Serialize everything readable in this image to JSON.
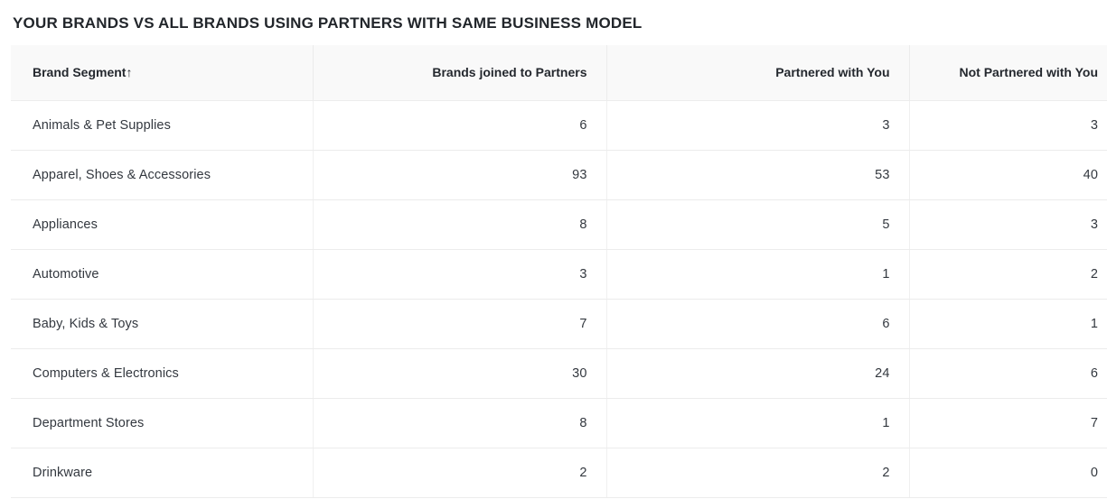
{
  "page": {
    "title": "YOUR BRANDS VS ALL BRANDS USING PARTNERS WITH SAME BUSINESS MODEL"
  },
  "table": {
    "sort_icon": "↑",
    "columns": [
      {
        "label": "Brand Segment",
        "sorted": "ascending",
        "align": "left"
      },
      {
        "label": "Brands joined to Partners",
        "align": "right"
      },
      {
        "label": "Partnered with You",
        "align": "right"
      },
      {
        "label": "Not Partnered with You",
        "align": "right"
      }
    ],
    "rows": [
      {
        "segment": "Animals & Pet Supplies",
        "brands_joined": "6",
        "partnered_with_you": "3",
        "not_partnered_with_you": "3"
      },
      {
        "segment": "Apparel, Shoes & Accessories",
        "brands_joined": "93",
        "partnered_with_you": "53",
        "not_partnered_with_you": "40"
      },
      {
        "segment": "Appliances",
        "brands_joined": "8",
        "partnered_with_you": "5",
        "not_partnered_with_you": "3"
      },
      {
        "segment": "Automotive",
        "brands_joined": "3",
        "partnered_with_you": "1",
        "not_partnered_with_you": "2"
      },
      {
        "segment": "Baby, Kids & Toys",
        "brands_joined": "7",
        "partnered_with_you": "6",
        "not_partnered_with_you": "1"
      },
      {
        "segment": "Computers & Electronics",
        "brands_joined": "30",
        "partnered_with_you": "24",
        "not_partnered_with_you": "6"
      },
      {
        "segment": "Department Stores",
        "brands_joined": "8",
        "partnered_with_you": "1",
        "not_partnered_with_you": "7"
      },
      {
        "segment": "Drinkware",
        "brands_joined": "2",
        "partnered_with_you": "2",
        "not_partnered_with_you": "0"
      }
    ]
  },
  "colors": {
    "header_bg": "#f9f9f9",
    "row_bg": "#ffffff",
    "border": "#ececec",
    "title_text": "#22262b",
    "header_text": "#24282e",
    "body_text": "#33383f"
  }
}
